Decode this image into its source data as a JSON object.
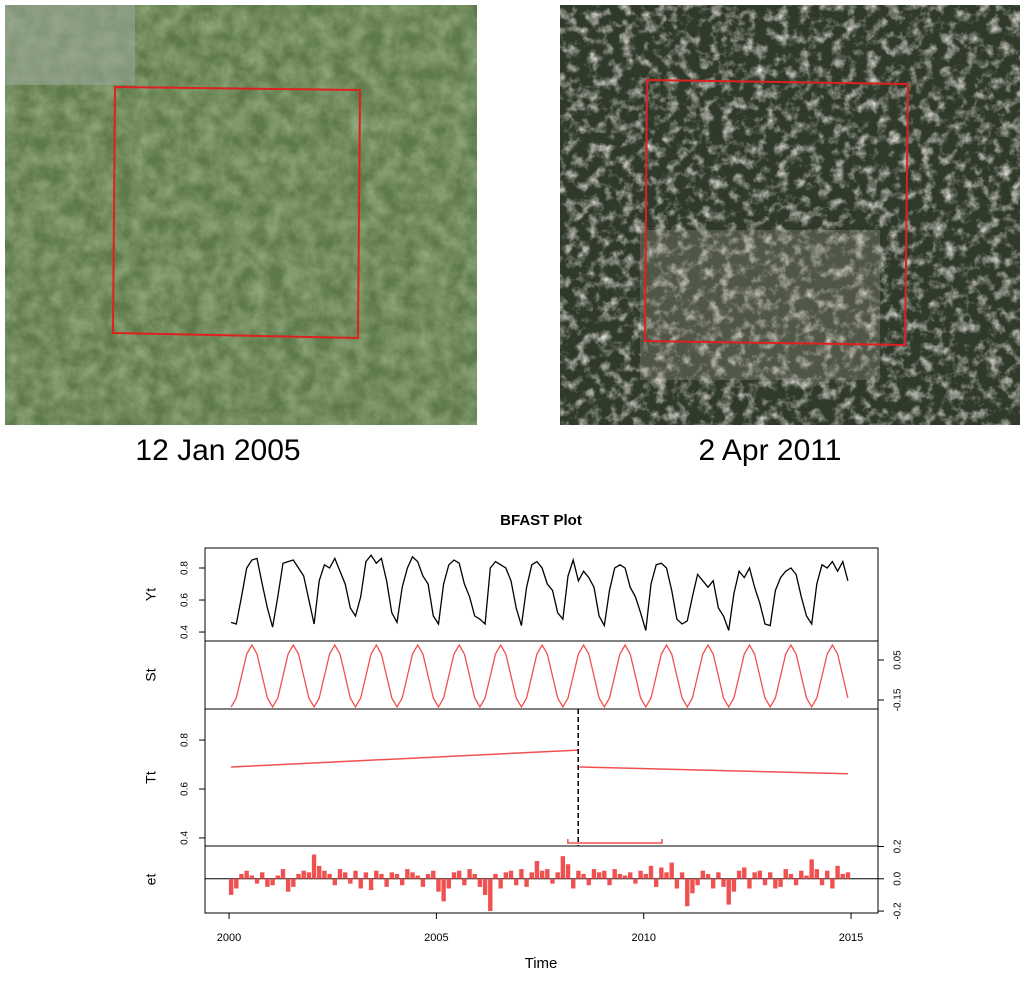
{
  "images": [
    {
      "caption": "12 Jan 2005"
    },
    {
      "caption": "2 Apr 2011"
    }
  ],
  "chart_data": {
    "type": "line",
    "title": "BFAST Plot",
    "x_label": "Time",
    "xlim": [
      1999.42,
      2015.65
    ],
    "xticks": [
      2000,
      2005,
      2010,
      2015
    ],
    "x": [
      2000.05,
      2000.175,
      2000.3,
      2000.425,
      2000.55,
      2000.675,
      2000.8,
      2000.925,
      2001.05,
      2001.175,
      2001.3,
      2001.425,
      2001.55,
      2001.675,
      2001.8,
      2001.925,
      2002.05,
      2002.175,
      2002.3,
      2002.425,
      2002.55,
      2002.675,
      2002.8,
      2002.925,
      2003.05,
      2003.175,
      2003.3,
      2003.425,
      2003.55,
      2003.675,
      2003.8,
      2003.925,
      2004.05,
      2004.175,
      2004.3,
      2004.425,
      2004.55,
      2004.675,
      2004.8,
      2004.925,
      2005.05,
      2005.175,
      2005.3,
      2005.425,
      2005.55,
      2005.675,
      2005.8,
      2005.925,
      2006.05,
      2006.175,
      2006.3,
      2006.425,
      2006.55,
      2006.675,
      2006.8,
      2006.925,
      2007.05,
      2007.175,
      2007.3,
      2007.425,
      2007.55,
      2007.675,
      2007.8,
      2007.925,
      2008.05,
      2008.175,
      2008.3,
      2008.425,
      2008.55,
      2008.675,
      2008.8,
      2008.925,
      2009.05,
      2009.175,
      2009.3,
      2009.425,
      2009.55,
      2009.675,
      2009.8,
      2009.925,
      2010.05,
      2010.175,
      2010.3,
      2010.425,
      2010.55,
      2010.675,
      2010.8,
      2010.925,
      2011.05,
      2011.175,
      2011.3,
      2011.425,
      2011.55,
      2011.675,
      2011.8,
      2011.925,
      2012.05,
      2012.175,
      2012.3,
      2012.425,
      2012.55,
      2012.675,
      2012.8,
      2012.925,
      2013.05,
      2013.175,
      2013.3,
      2013.425,
      2013.55,
      2013.675,
      2013.8,
      2013.925,
      2014.05,
      2014.175,
      2014.3,
      2014.425,
      2014.55,
      2014.675,
      2014.8,
      2014.925
    ],
    "panels": [
      {
        "label": "Yt",
        "type": "line",
        "color": "#000000",
        "tick_side": "left",
        "ylim": [
          0.344,
          0.925
        ],
        "yticks": [
          0.4,
          0.6,
          0.8
        ],
        "values": [
          0.46,
          0.45,
          0.62,
          0.8,
          0.85,
          0.86,
          0.7,
          0.55,
          0.43,
          0.62,
          0.83,
          0.84,
          0.85,
          0.8,
          0.75,
          0.6,
          0.45,
          0.72,
          0.82,
          0.8,
          0.86,
          0.78,
          0.7,
          0.55,
          0.5,
          0.62,
          0.84,
          0.88,
          0.83,
          0.86,
          0.72,
          0.52,
          0.46,
          0.68,
          0.8,
          0.87,
          0.84,
          0.75,
          0.7,
          0.5,
          0.45,
          0.7,
          0.82,
          0.85,
          0.83,
          0.7,
          0.62,
          0.5,
          0.48,
          0.45,
          0.8,
          0.84,
          0.82,
          0.8,
          0.72,
          0.55,
          0.44,
          0.68,
          0.82,
          0.84,
          0.8,
          0.7,
          0.66,
          0.52,
          0.48,
          0.75,
          0.85,
          0.72,
          0.78,
          0.74,
          0.68,
          0.5,
          0.44,
          0.66,
          0.8,
          0.82,
          0.8,
          0.68,
          0.62,
          0.52,
          0.41,
          0.7,
          0.82,
          0.83,
          0.8,
          0.66,
          0.48,
          0.45,
          0.47,
          0.62,
          0.76,
          0.72,
          0.68,
          0.72,
          0.55,
          0.5,
          0.41,
          0.64,
          0.78,
          0.74,
          0.8,
          0.68,
          0.58,
          0.45,
          0.44,
          0.66,
          0.74,
          0.78,
          0.8,
          0.76,
          0.62,
          0.5,
          0.45,
          0.7,
          0.82,
          0.8,
          0.84,
          0.78,
          0.84,
          0.72
        ]
      },
      {
        "label": "St",
        "type": "line",
        "color": "#f0504f",
        "tick_side": "right",
        "ylim": [
          -0.195,
          0.145
        ],
        "yticks": [
          -0.15,
          0.05
        ],
        "values": [
          -0.185,
          -0.14,
          -0.03,
          0.08,
          0.125,
          0.08,
          -0.03,
          -0.14,
          -0.185,
          -0.14,
          -0.03,
          0.08,
          0.125,
          0.08,
          -0.03,
          -0.14,
          -0.185,
          -0.14,
          -0.03,
          0.08,
          0.125,
          0.08,
          -0.03,
          -0.14,
          -0.185,
          -0.14,
          -0.03,
          0.08,
          0.125,
          0.08,
          -0.03,
          -0.14,
          -0.185,
          -0.14,
          -0.03,
          0.08,
          0.125,
          0.08,
          -0.03,
          -0.14,
          -0.185,
          -0.14,
          -0.03,
          0.08,
          0.125,
          0.08,
          -0.03,
          -0.14,
          -0.185,
          -0.14,
          -0.03,
          0.08,
          0.125,
          0.08,
          -0.03,
          -0.14,
          -0.185,
          -0.14,
          -0.03,
          0.08,
          0.125,
          0.08,
          -0.03,
          -0.14,
          -0.185,
          -0.14,
          -0.03,
          0.08,
          0.125,
          0.08,
          -0.03,
          -0.14,
          -0.185,
          -0.14,
          -0.03,
          0.08,
          0.125,
          0.08,
          -0.03,
          -0.14,
          -0.185,
          -0.14,
          -0.03,
          0.08,
          0.125,
          0.08,
          -0.03,
          -0.14,
          -0.185,
          -0.14,
          -0.03,
          0.08,
          0.125,
          0.08,
          -0.03,
          -0.14,
          -0.185,
          -0.14,
          -0.03,
          0.08,
          0.125,
          0.08,
          -0.03,
          -0.14,
          -0.185,
          -0.14,
          -0.03,
          0.08,
          0.125,
          0.08,
          -0.03,
          -0.14,
          -0.185,
          -0.14,
          -0.03,
          0.08,
          0.125,
          0.08,
          -0.03,
          -0.14
        ]
      },
      {
        "label": "Tt",
        "type": "trend",
        "color": "#f0504f",
        "tick_side": "left",
        "ylim": [
          0.367,
          0.927
        ],
        "yticks": [
          0.4,
          0.6,
          0.8
        ],
        "segments": [
          {
            "x": [
              2000.05,
              2008.42
            ],
            "values": [
              0.69,
              0.759
            ]
          },
          {
            "x": [
              2008.45,
              2014.925
            ],
            "values": [
              0.69,
              0.662
            ]
          }
        ],
        "breakpoint": 2008.42,
        "confidence_interval": [
          2008.17,
          2010.44
        ]
      },
      {
        "label": "et",
        "type": "bar",
        "color": "#f0504f",
        "tick_side": "right",
        "ylim": [
          -0.212,
          0.203
        ],
        "yticks": [
          -0.2,
          {
            "value": 0,
            "label": "0.0"
          },
          0.2
        ],
        "values": [
          -0.1,
          -0.06,
          0.03,
          0.05,
          0.02,
          -0.03,
          0.04,
          -0.05,
          -0.04,
          0.02,
          0.06,
          -0.08,
          -0.05,
          0.03,
          0.05,
          0.04,
          0.15,
          0.08,
          0.05,
          0.03,
          -0.04,
          0.06,
          0.04,
          -0.03,
          0.05,
          -0.06,
          0.04,
          -0.07,
          0.05,
          0.03,
          -0.05,
          0.04,
          0.03,
          -0.04,
          0.06,
          0.04,
          0.02,
          -0.05,
          0.03,
          0.05,
          -0.08,
          -0.14,
          -0.06,
          0.04,
          0.05,
          -0.04,
          0.06,
          0.03,
          -0.05,
          -0.1,
          -0.2,
          0.03,
          -0.06,
          0.04,
          0.05,
          -0.04,
          0.06,
          -0.05,
          0.04,
          0.11,
          0.05,
          0.06,
          -0.03,
          0.04,
          0.14,
          0.09,
          -0.06,
          0.05,
          0.03,
          -0.04,
          0.06,
          0.04,
          0.05,
          -0.04,
          0.06,
          0.03,
          0.02,
          0.04,
          -0.03,
          0.05,
          0.03,
          0.08,
          -0.05,
          0.07,
          0.04,
          0.1,
          -0.06,
          0.04,
          -0.17,
          -0.09,
          -0.04,
          0.05,
          0.03,
          -0.06,
          0.04,
          -0.05,
          -0.16,
          -0.08,
          0.05,
          0.07,
          -0.06,
          0.04,
          0.05,
          -0.04,
          0.04,
          -0.06,
          -0.05,
          0.06,
          0.03,
          -0.04,
          0.05,
          0.02,
          0.12,
          0.06,
          -0.04,
          0.05,
          -0.06,
          0.08,
          0.03,
          0.04
        ]
      }
    ]
  }
}
